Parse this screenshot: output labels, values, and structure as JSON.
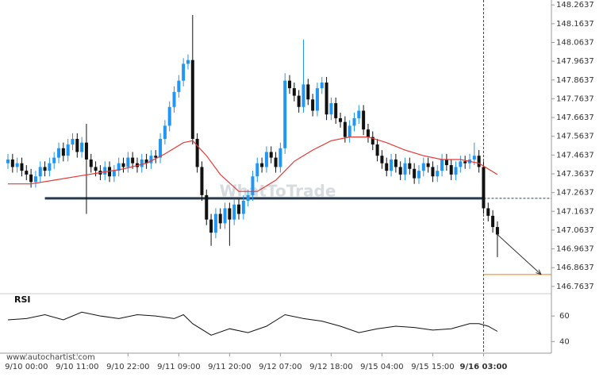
{
  "chart_data": {
    "type": "candlestick",
    "x": [
      0,
      1,
      2,
      3,
      4,
      5,
      6,
      7,
      8,
      9,
      10,
      11,
      12,
      13,
      14,
      15,
      16,
      17,
      18,
      19,
      20,
      21,
      22,
      23,
      24,
      25,
      26,
      27,
      28,
      29,
      30,
      31,
      32,
      33,
      34,
      35,
      36,
      37,
      38,
      39,
      40,
      41,
      42,
      43,
      44,
      45,
      46,
      47,
      48,
      49,
      50,
      51,
      52,
      53,
      54,
      55,
      56,
      57,
      58,
      59,
      60,
      61,
      62,
      63,
      64,
      65,
      66,
      67,
      68,
      69,
      70,
      71,
      72,
      73,
      74,
      75,
      76,
      77,
      78,
      79,
      80,
      81,
      82,
      83,
      84,
      85,
      86,
      87,
      88,
      89,
      90,
      91,
      92,
      93,
      94,
      95,
      96,
      97,
      98,
      99,
      100,
      101,
      102,
      103,
      104,
      105,
      106
    ],
    "open": [
      147.42,
      147.44,
      147.4,
      147.42,
      147.38,
      147.36,
      147.32,
      147.35,
      147.4,
      147.38,
      147.42,
      147.45,
      147.5,
      147.46,
      147.52,
      147.55,
      147.48,
      147.53,
      147.44,
      147.4,
      147.38,
      147.36,
      147.4,
      147.35,
      147.38,
      147.42,
      147.4,
      147.45,
      147.42,
      147.4,
      147.44,
      147.42,
      147.46,
      147.45,
      147.55,
      147.62,
      147.72,
      147.8,
      147.86,
      147.95,
      147.97,
      147.55,
      147.4,
      147.25,
      147.12,
      147.05,
      147.15,
      147.1,
      147.18,
      147.12,
      147.2,
      147.15,
      147.22,
      147.25,
      147.35,
      147.42,
      147.4,
      147.48,
      147.45,
      147.4,
      147.5,
      147.86,
      147.82,
      147.78,
      147.72,
      147.84,
      147.76,
      147.7,
      147.82,
      147.85,
      147.68,
      147.74,
      147.66,
      147.64,
      147.56,
      147.62,
      147.66,
      147.7,
      147.6,
      147.56,
      147.52,
      147.46,
      147.42,
      147.38,
      147.44,
      147.4,
      147.36,
      147.42,
      147.39,
      147.34,
      147.38,
      147.42,
      147.4,
      147.35,
      147.38,
      147.44,
      147.41,
      147.36,
      147.4,
      147.43,
      147.42,
      147.44,
      147.46,
      147.4,
      147.18,
      147.14,
      147.08
    ],
    "high": [
      147.47,
      147.47,
      147.45,
      147.45,
      147.41,
      147.39,
      147.38,
      147.43,
      147.43,
      147.45,
      147.48,
      147.53,
      147.53,
      147.55,
      147.58,
      147.58,
      147.56,
      147.63,
      147.47,
      147.43,
      147.41,
      147.43,
      147.43,
      147.41,
      147.45,
      147.45,
      147.48,
      147.48,
      147.45,
      147.47,
      147.47,
      147.49,
      147.49,
      147.58,
      147.65,
      147.75,
      147.83,
      147.89,
      147.98,
      148.0,
      148.21,
      147.58,
      147.43,
      147.28,
      147.15,
      147.18,
      147.18,
      147.21,
      147.21,
      147.23,
      147.23,
      147.25,
      147.28,
      147.38,
      147.45,
      147.45,
      147.51,
      147.51,
      147.48,
      147.53,
      147.9,
      147.89,
      147.85,
      147.81,
      148.08,
      147.87,
      147.79,
      147.85,
      147.88,
      147.88,
      147.77,
      147.77,
      147.69,
      147.67,
      147.65,
      147.69,
      147.73,
      147.73,
      147.63,
      147.59,
      147.55,
      147.49,
      147.45,
      147.47,
      147.47,
      147.43,
      147.45,
      147.45,
      147.42,
      147.41,
      147.45,
      147.45,
      147.43,
      147.41,
      147.47,
      147.47,
      147.44,
      147.43,
      147.46,
      147.46,
      147.47,
      147.53,
      147.49,
      147.43,
      147.21,
      147.17,
      147.11
    ],
    "low": [
      147.39,
      147.37,
      147.37,
      147.35,
      147.33,
      147.29,
      147.29,
      147.32,
      147.35,
      147.35,
      147.39,
      147.42,
      147.43,
      147.43,
      147.49,
      147.45,
      147.45,
      147.15,
      147.37,
      147.35,
      147.33,
      147.33,
      147.32,
      147.32,
      147.35,
      147.37,
      147.37,
      147.39,
      147.37,
      147.37,
      147.39,
      147.39,
      147.42,
      147.42,
      147.52,
      147.59,
      147.69,
      147.77,
      147.83,
      147.92,
      147.52,
      147.37,
      147.22,
      147.09,
      146.98,
      147.02,
      147.07,
      147.07,
      146.98,
      147.09,
      147.12,
      147.12,
      147.19,
      147.22,
      147.32,
      147.37,
      147.37,
      147.42,
      147.37,
      147.37,
      147.47,
      147.79,
      147.75,
      147.69,
      147.69,
      147.73,
      147.67,
      147.67,
      147.79,
      147.65,
      147.65,
      147.63,
      147.61,
      147.53,
      147.53,
      147.59,
      147.63,
      147.57,
      147.53,
      147.49,
      147.43,
      147.39,
      147.35,
      147.35,
      147.37,
      147.33,
      147.33,
      147.36,
      147.31,
      147.31,
      147.35,
      147.37,
      147.32,
      147.32,
      147.35,
      147.38,
      147.33,
      147.33,
      147.37,
      147.39,
      147.39,
      147.41,
      147.37,
      147.15,
      147.11,
      147.05,
      146.92
    ],
    "close": [
      147.44,
      147.4,
      147.42,
      147.38,
      147.36,
      147.32,
      147.35,
      147.4,
      147.38,
      147.42,
      147.45,
      147.5,
      147.46,
      147.52,
      147.55,
      147.48,
      147.53,
      147.44,
      147.4,
      147.38,
      147.36,
      147.4,
      147.35,
      147.38,
      147.42,
      147.4,
      147.45,
      147.42,
      147.4,
      147.44,
      147.42,
      147.46,
      147.45,
      147.55,
      147.62,
      147.72,
      147.8,
      147.86,
      147.95,
      147.97,
      147.55,
      147.4,
      147.25,
      147.12,
      147.05,
      147.15,
      147.1,
      147.18,
      147.12,
      147.2,
      147.15,
      147.22,
      147.25,
      147.35,
      147.42,
      147.4,
      147.48,
      147.45,
      147.4,
      147.5,
      147.86,
      147.82,
      147.78,
      147.72,
      147.84,
      147.76,
      147.7,
      147.82,
      147.85,
      147.68,
      147.74,
      147.66,
      147.64,
      147.56,
      147.62,
      147.66,
      147.7,
      147.6,
      147.56,
      147.52,
      147.46,
      147.42,
      147.38,
      147.44,
      147.4,
      147.36,
      147.42,
      147.39,
      147.34,
      147.38,
      147.42,
      147.4,
      147.35,
      147.38,
      147.44,
      147.41,
      147.36,
      147.4,
      147.43,
      147.42,
      147.44,
      147.46,
      147.4,
      147.18,
      147.14,
      147.08,
      147.04
    ],
    "up_color": "#2196f3",
    "down_color": "#111111",
    "moving_average": {
      "color": "#e53935",
      "x": [
        0,
        5,
        10,
        15,
        20,
        25,
        30,
        34,
        38,
        40,
        43,
        46,
        50,
        54,
        58,
        62,
        66,
        70,
        74,
        78,
        82,
        86,
        90,
        94,
        98,
        102,
        106
      ],
      "values": [
        147.31,
        147.31,
        147.33,
        147.35,
        147.37,
        147.39,
        147.42,
        147.47,
        147.53,
        147.54,
        147.46,
        147.36,
        147.27,
        147.27,
        147.33,
        147.43,
        147.49,
        147.54,
        147.56,
        147.56,
        147.53,
        147.49,
        147.46,
        147.44,
        147.44,
        147.42,
        147.36
      ]
    },
    "support_level": 147.233,
    "target_level": 146.827,
    "xlim": [
      -1.72,
      117.7
    ],
    "ylim": [
      146.725,
      148.29
    ],
    "yticks": [
      148.2637,
      148.1637,
      148.0637,
      147.9637,
      147.8637,
      147.7637,
      147.6637,
      147.5637,
      147.4637,
      147.3637,
      147.2637,
      147.1637,
      147.0637,
      146.9637,
      146.8637,
      146.7637
    ],
    "xticks": [
      {
        "value": 4,
        "label": "9/10 00:00"
      },
      {
        "value": 15,
        "label": "9/10 11:00"
      },
      {
        "value": 26,
        "label": "9/10 22:00"
      },
      {
        "value": 37,
        "label": "9/11 09:00"
      },
      {
        "value": 48,
        "label": "9/11 20:00"
      },
      {
        "value": 59,
        "label": "9/12 07:00"
      },
      {
        "value": 70,
        "label": "9/12 18:00"
      },
      {
        "value": 81,
        "label": "9/15 04:00"
      },
      {
        "value": 92,
        "label": "9/15 15:00"
      },
      {
        "value": 103,
        "label": "9/16 03:00"
      }
    ],
    "rsi": {
      "label": "RSI",
      "color": "#111111",
      "x": [
        0,
        4,
        8,
        12,
        16,
        20,
        24,
        28,
        32,
        36,
        38,
        40,
        44,
        48,
        52,
        56,
        60,
        64,
        68,
        72,
        76,
        80,
        84,
        88,
        92,
        96,
        100,
        102,
        104,
        106
      ],
      "values": [
        57,
        58,
        61,
        57,
        63,
        60,
        58,
        61,
        60,
        58,
        61,
        54,
        45,
        50,
        47,
        52,
        61,
        58,
        56,
        52,
        47,
        50,
        52,
        51,
        49,
        50,
        54,
        54,
        52,
        48
      ],
      "ylim": [
        34,
        74
      ],
      "yticks": [
        60,
        40
      ]
    },
    "watermark": "WhatToTrade",
    "source": "www.autochartist.com"
  }
}
